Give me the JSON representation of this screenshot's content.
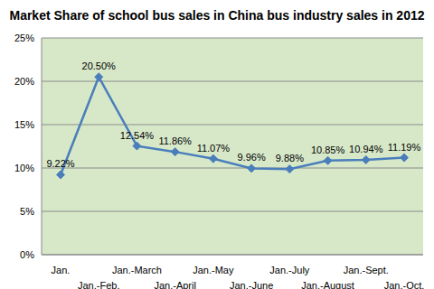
{
  "chart_data": {
    "type": "line",
    "title": "Market Share of school bus sales in China bus industry sales in 2012",
    "categories": [
      "Jan.",
      "Jan.-Feb.",
      "Jan.-March",
      "Jan.-April",
      "Jan.-May",
      "Jan.-June",
      "Jan.-July",
      "Jan.-August",
      "Jan.-Sept.",
      "Jan.-Oct."
    ],
    "values": [
      9.22,
      20.5,
      12.54,
      11.86,
      11.07,
      9.96,
      9.88,
      10.85,
      10.94,
      11.19
    ],
    "value_labels": [
      "9.22%",
      "20.50%",
      "12.54%",
      "11.86%",
      "11.07%",
      "9.96%",
      "9.88%",
      "10.85%",
      "10.94%",
      "11.19%"
    ],
    "color": "#4a7ebb",
    "marker": "diamond",
    "ylim": [
      0,
      25
    ],
    "yticks": [
      {
        "value": 0,
        "label": "0%"
      },
      {
        "value": 5,
        "label": "5%"
      },
      {
        "value": 10,
        "label": "10%"
      },
      {
        "value": 15,
        "label": "15%"
      },
      {
        "value": 20,
        "label": "20%"
      },
      {
        "value": 25,
        "label": "25%"
      }
    ],
    "grid": true,
    "data_labels": true
  }
}
